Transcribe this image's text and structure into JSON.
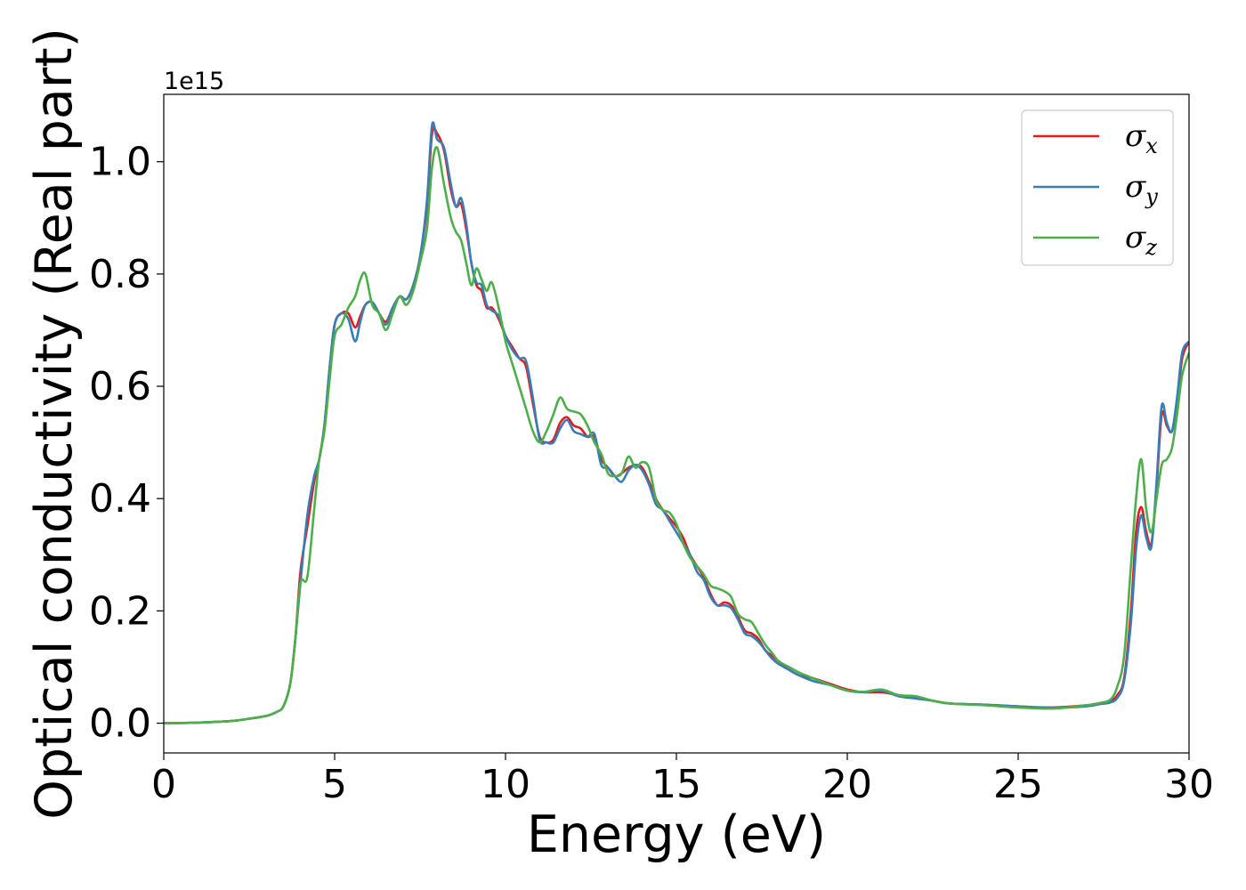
{
  "chart_data": {
    "type": "line",
    "title": "",
    "xlabel": "Energy (eV)",
    "ylabel": "Optical conductivity (Real part)",
    "offset_text": "1e15",
    "xlim": [
      0,
      30
    ],
    "ylim": [
      -0.053,
      1.12
    ],
    "xticks": [
      0,
      5,
      10,
      15,
      20,
      25,
      30
    ],
    "yticks": [
      0.0,
      0.2,
      0.4,
      0.6,
      0.8,
      1.0
    ],
    "xtick_labels": [
      "0",
      "5",
      "10",
      "15",
      "20",
      "25",
      "30"
    ],
    "ytick_labels": [
      "0.0",
      "0.2",
      "0.4",
      "0.6",
      "0.8",
      "1.0"
    ],
    "grid": false,
    "legend_position": "top-right",
    "series": [
      {
        "name": "σ_x",
        "symbol": "σ",
        "subscript": "x",
        "color": "#e41a1c",
        "x": [
          0,
          1,
          2,
          2.5,
          3,
          3.3,
          3.5,
          3.7,
          3.85,
          4.0,
          4.2,
          4.4,
          4.55,
          4.7,
          4.85,
          5.0,
          5.2,
          5.4,
          5.6,
          5.75,
          5.9,
          6.1,
          6.3,
          6.5,
          6.7,
          6.9,
          7.1,
          7.3,
          7.5,
          7.7,
          7.85,
          8.0,
          8.2,
          8.4,
          8.55,
          8.7,
          8.85,
          9.0,
          9.15,
          9.3,
          9.45,
          9.6,
          9.8,
          10.0,
          10.2,
          10.4,
          10.6,
          10.8,
          11.0,
          11.2,
          11.4,
          11.6,
          11.8,
          12.0,
          12.2,
          12.4,
          12.6,
          12.8,
          13.0,
          13.2,
          13.4,
          13.6,
          13.8,
          14.0,
          14.2,
          14.4,
          14.6,
          14.8,
          15.0,
          15.2,
          15.4,
          15.6,
          15.8,
          16.0,
          16.2,
          16.4,
          16.6,
          16.8,
          17.0,
          17.2,
          17.4,
          17.6,
          17.8,
          18.0,
          18.3,
          18.6,
          19.0,
          19.5,
          20.0,
          20.5,
          21.0,
          21.5,
          22.0,
          22.5,
          23.0,
          24.0,
          25.0,
          26.0,
          27.0,
          27.4,
          27.7,
          27.9,
          28.1,
          28.3,
          28.45,
          28.6,
          28.75,
          28.9,
          29.05,
          29.2,
          29.35,
          29.5,
          29.65,
          29.8,
          30.0
        ],
        "y": [
          0,
          0.001,
          0.004,
          0.008,
          0.013,
          0.02,
          0.03,
          0.07,
          0.15,
          0.27,
          0.35,
          0.43,
          0.47,
          0.53,
          0.63,
          0.71,
          0.73,
          0.73,
          0.705,
          0.725,
          0.745,
          0.75,
          0.73,
          0.715,
          0.74,
          0.76,
          0.755,
          0.78,
          0.83,
          0.92,
          1.05,
          1.05,
          1.02,
          0.95,
          0.92,
          0.925,
          0.88,
          0.82,
          0.78,
          0.77,
          0.74,
          0.74,
          0.72,
          0.69,
          0.67,
          0.65,
          0.635,
          0.57,
          0.51,
          0.5,
          0.505,
          0.535,
          0.545,
          0.53,
          0.525,
          0.51,
          0.51,
          0.47,
          0.455,
          0.44,
          0.445,
          0.455,
          0.46,
          0.455,
          0.43,
          0.4,
          0.38,
          0.365,
          0.35,
          0.33,
          0.3,
          0.28,
          0.26,
          0.23,
          0.21,
          0.215,
          0.21,
          0.19,
          0.165,
          0.16,
          0.15,
          0.13,
          0.12,
          0.11,
          0.095,
          0.085,
          0.08,
          0.07,
          0.06,
          0.055,
          0.055,
          0.05,
          0.045,
          0.04,
          0.035,
          0.033,
          0.03,
          0.028,
          0.032,
          0.036,
          0.04,
          0.05,
          0.08,
          0.2,
          0.34,
          0.385,
          0.34,
          0.32,
          0.42,
          0.55,
          0.53,
          0.52,
          0.57,
          0.65,
          0.68
        ]
      },
      {
        "name": "σ_y",
        "symbol": "σ",
        "subscript": "y",
        "color": "#377eb8",
        "x": [
          0,
          1,
          2,
          2.5,
          3,
          3.3,
          3.5,
          3.7,
          3.85,
          4.0,
          4.2,
          4.4,
          4.55,
          4.7,
          4.85,
          5.0,
          5.2,
          5.4,
          5.6,
          5.75,
          5.9,
          6.1,
          6.3,
          6.5,
          6.7,
          6.9,
          7.1,
          7.3,
          7.5,
          7.7,
          7.85,
          8.0,
          8.2,
          8.4,
          8.55,
          8.7,
          8.85,
          9.0,
          9.15,
          9.3,
          9.45,
          9.6,
          9.8,
          10.0,
          10.2,
          10.4,
          10.6,
          10.8,
          11.0,
          11.2,
          11.4,
          11.6,
          11.8,
          12.0,
          12.2,
          12.4,
          12.6,
          12.8,
          13.0,
          13.2,
          13.4,
          13.6,
          13.8,
          14.0,
          14.2,
          14.4,
          14.6,
          14.8,
          15.0,
          15.2,
          15.4,
          15.6,
          15.8,
          16.0,
          16.2,
          16.4,
          16.6,
          16.8,
          17.0,
          17.2,
          17.4,
          17.6,
          17.8,
          18.0,
          18.3,
          18.6,
          19.0,
          19.5,
          20.0,
          20.5,
          21.0,
          21.5,
          22.0,
          22.5,
          23.0,
          24.0,
          25.0,
          26.0,
          27.0,
          27.4,
          27.7,
          27.9,
          28.1,
          28.3,
          28.45,
          28.6,
          28.75,
          28.9,
          29.05,
          29.2,
          29.35,
          29.5,
          29.65,
          29.8,
          30.0
        ],
        "y": [
          0,
          0.001,
          0.004,
          0.008,
          0.013,
          0.02,
          0.03,
          0.07,
          0.15,
          0.25,
          0.37,
          0.44,
          0.47,
          0.53,
          0.63,
          0.71,
          0.73,
          0.72,
          0.68,
          0.715,
          0.745,
          0.75,
          0.73,
          0.71,
          0.74,
          0.76,
          0.755,
          0.78,
          0.83,
          0.93,
          1.065,
          1.04,
          1.025,
          0.96,
          0.92,
          0.935,
          0.89,
          0.82,
          0.785,
          0.78,
          0.745,
          0.735,
          0.725,
          0.69,
          0.665,
          0.65,
          0.645,
          0.58,
          0.505,
          0.5,
          0.5,
          0.525,
          0.54,
          0.52,
          0.515,
          0.51,
          0.515,
          0.46,
          0.455,
          0.44,
          0.43,
          0.45,
          0.46,
          0.45,
          0.425,
          0.39,
          0.38,
          0.36,
          0.34,
          0.32,
          0.3,
          0.27,
          0.255,
          0.225,
          0.21,
          0.21,
          0.205,
          0.185,
          0.16,
          0.155,
          0.145,
          0.13,
          0.115,
          0.105,
          0.095,
          0.085,
          0.075,
          0.068,
          0.058,
          0.055,
          0.058,
          0.048,
          0.044,
          0.04,
          0.035,
          0.033,
          0.03,
          0.027,
          0.03,
          0.034,
          0.037,
          0.045,
          0.075,
          0.18,
          0.31,
          0.37,
          0.33,
          0.315,
          0.43,
          0.565,
          0.535,
          0.52,
          0.58,
          0.66,
          0.68
        ]
      },
      {
        "name": "σ_z",
        "symbol": "σ",
        "subscript": "z",
        "color": "#4daf4a",
        "x": [
          0,
          1,
          2,
          2.5,
          3,
          3.3,
          3.5,
          3.7,
          3.85,
          4.0,
          4.2,
          4.4,
          4.55,
          4.7,
          4.85,
          5.0,
          5.2,
          5.4,
          5.6,
          5.75,
          5.9,
          6.1,
          6.3,
          6.5,
          6.7,
          6.9,
          7.1,
          7.3,
          7.5,
          7.7,
          7.85,
          8.0,
          8.2,
          8.4,
          8.55,
          8.7,
          8.85,
          9.0,
          9.15,
          9.3,
          9.45,
          9.6,
          9.8,
          10.0,
          10.2,
          10.4,
          10.6,
          10.8,
          11.0,
          11.2,
          11.4,
          11.6,
          11.8,
          12.0,
          12.2,
          12.4,
          12.6,
          12.8,
          13.0,
          13.2,
          13.4,
          13.6,
          13.8,
          14.0,
          14.2,
          14.4,
          14.6,
          14.8,
          15.0,
          15.2,
          15.4,
          15.6,
          15.8,
          16.0,
          16.2,
          16.4,
          16.6,
          16.8,
          17.0,
          17.2,
          17.4,
          17.6,
          17.8,
          18.0,
          18.3,
          18.6,
          19.0,
          19.5,
          20.0,
          20.5,
          21.0,
          21.5,
          22.0,
          22.5,
          23.0,
          24.0,
          25.0,
          26.0,
          27.0,
          27.4,
          27.7,
          27.9,
          28.1,
          28.3,
          28.45,
          28.6,
          28.75,
          28.9,
          29.05,
          29.2,
          29.35,
          29.5,
          29.65,
          29.8,
          30.0
        ],
        "y": [
          0,
          0.001,
          0.004,
          0.008,
          0.013,
          0.02,
          0.03,
          0.07,
          0.15,
          0.25,
          0.26,
          0.38,
          0.47,
          0.52,
          0.61,
          0.69,
          0.71,
          0.74,
          0.76,
          0.79,
          0.8,
          0.745,
          0.73,
          0.7,
          0.73,
          0.76,
          0.745,
          0.77,
          0.82,
          0.88,
          0.99,
          1.025,
          0.96,
          0.9,
          0.875,
          0.86,
          0.82,
          0.78,
          0.81,
          0.79,
          0.77,
          0.785,
          0.74,
          0.68,
          0.64,
          0.6,
          0.56,
          0.52,
          0.5,
          0.52,
          0.55,
          0.58,
          0.56,
          0.555,
          0.55,
          0.53,
          0.5,
          0.48,
          0.445,
          0.44,
          0.445,
          0.475,
          0.455,
          0.465,
          0.455,
          0.4,
          0.38,
          0.375,
          0.355,
          0.32,
          0.295,
          0.28,
          0.265,
          0.245,
          0.24,
          0.235,
          0.225,
          0.195,
          0.185,
          0.18,
          0.16,
          0.14,
          0.125,
          0.11,
          0.1,
          0.09,
          0.08,
          0.068,
          0.058,
          0.056,
          0.06,
          0.05,
          0.048,
          0.04,
          0.035,
          0.032,
          0.028,
          0.026,
          0.032,
          0.036,
          0.042,
          0.065,
          0.12,
          0.28,
          0.4,
          0.47,
          0.38,
          0.34,
          0.4,
          0.46,
          0.47,
          0.49,
          0.55,
          0.62,
          0.66
        ]
      }
    ]
  }
}
